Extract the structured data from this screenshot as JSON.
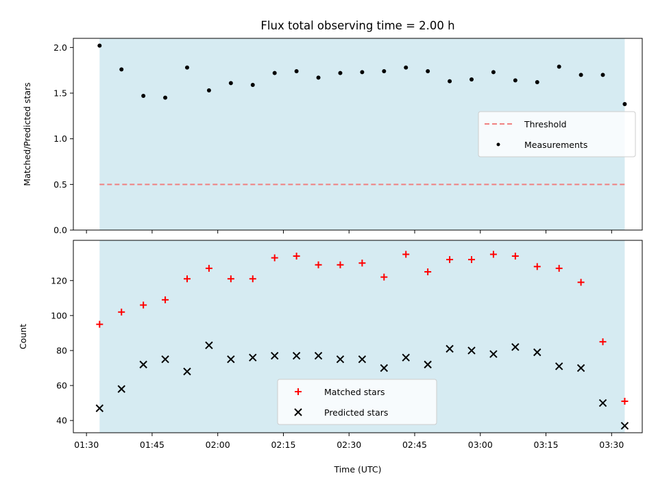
{
  "title": "Flux total observing time = 2.00 h",
  "colors": {
    "shade": "#add8e6",
    "threshold": "#f08080",
    "measurements": "#000000",
    "matched": "#ff0000",
    "predicted": "#000000"
  },
  "chart_data": [
    {
      "type": "scatter",
      "panel": "top",
      "ylabel": "Matched/Predicted stars",
      "xlabel": "",
      "ylim": [
        0,
        2.1
      ],
      "yticks": [
        0.0,
        0.5,
        1.0,
        1.5,
        2.0
      ],
      "ytick_labels": [
        "0.0",
        "0.5",
        "1.0",
        "1.5",
        "2.0"
      ],
      "xlim": [
        "01:27",
        "03:37"
      ],
      "shaded_span": [
        "01:33",
        "03:33"
      ],
      "legend": {
        "placement": "center-right",
        "entries": [
          "Threshold",
          "Measurements"
        ]
      },
      "threshold": {
        "name": "Threshold",
        "value": 0.5,
        "style": "dashed"
      },
      "series": [
        {
          "name": "Measurements",
          "marker": "dot",
          "x": [
            "01:33",
            "01:38",
            "01:43",
            "01:48",
            "01:53",
            "01:58",
            "02:03",
            "02:08",
            "02:13",
            "02:18",
            "02:23",
            "02:28",
            "02:33",
            "02:38",
            "02:43",
            "02:48",
            "02:53",
            "02:58",
            "03:03",
            "03:08",
            "03:13",
            "03:18",
            "03:23",
            "03:28",
            "03:33"
          ],
          "values": [
            2.02,
            1.76,
            1.47,
            1.45,
            1.78,
            1.53,
            1.61,
            1.59,
            1.72,
            1.74,
            1.67,
            1.72,
            1.73,
            1.74,
            1.78,
            1.74,
            1.63,
            1.65,
            1.73,
            1.64,
            1.62,
            1.79,
            1.7,
            1.7,
            1.38
          ]
        }
      ]
    },
    {
      "type": "scatter",
      "panel": "bottom",
      "ylabel": "Count",
      "xlabel": "Time (UTC)",
      "ylim": [
        33,
        143
      ],
      "yticks": [
        40,
        60,
        80,
        100,
        120
      ],
      "ytick_labels": [
        "40",
        "60",
        "80",
        "100",
        "120"
      ],
      "xlim": [
        "01:27",
        "03:37"
      ],
      "xticks": [
        "01:30",
        "01:45",
        "02:00",
        "02:15",
        "02:30",
        "02:45",
        "03:00",
        "03:15",
        "03:30"
      ],
      "shaded_span": [
        "01:33",
        "03:33"
      ],
      "legend": {
        "placement": "lower-center",
        "entries": [
          "Matched stars",
          "Predicted stars"
        ]
      },
      "series": [
        {
          "name": "Matched stars",
          "marker": "plus",
          "x": [
            "01:33",
            "01:38",
            "01:43",
            "01:48",
            "01:53",
            "01:58",
            "02:03",
            "02:08",
            "02:13",
            "02:18",
            "02:23",
            "02:28",
            "02:33",
            "02:38",
            "02:43",
            "02:48",
            "02:53",
            "02:58",
            "03:03",
            "03:08",
            "03:13",
            "03:18",
            "03:23",
            "03:28",
            "03:33"
          ],
          "values": [
            95,
            102,
            106,
            109,
            121,
            127,
            121,
            121,
            133,
            134,
            129,
            129,
            130,
            122,
            135,
            125,
            132,
            132,
            135,
            134,
            128,
            127,
            119,
            85,
            51
          ]
        },
        {
          "name": "Predicted stars",
          "marker": "x",
          "x": [
            "01:33",
            "01:38",
            "01:43",
            "01:48",
            "01:53",
            "01:58",
            "02:03",
            "02:08",
            "02:13",
            "02:18",
            "02:23",
            "02:28",
            "02:33",
            "02:38",
            "02:43",
            "02:48",
            "02:53",
            "02:58",
            "03:03",
            "03:08",
            "03:13",
            "03:18",
            "03:23",
            "03:28",
            "03:33"
          ],
          "values": [
            47,
            58,
            72,
            75,
            68,
            83,
            75,
            76,
            77,
            77,
            77,
            75,
            75,
            70,
            76,
            72,
            81,
            80,
            78,
            82,
            79,
            71,
            70,
            50,
            37
          ]
        }
      ]
    }
  ]
}
